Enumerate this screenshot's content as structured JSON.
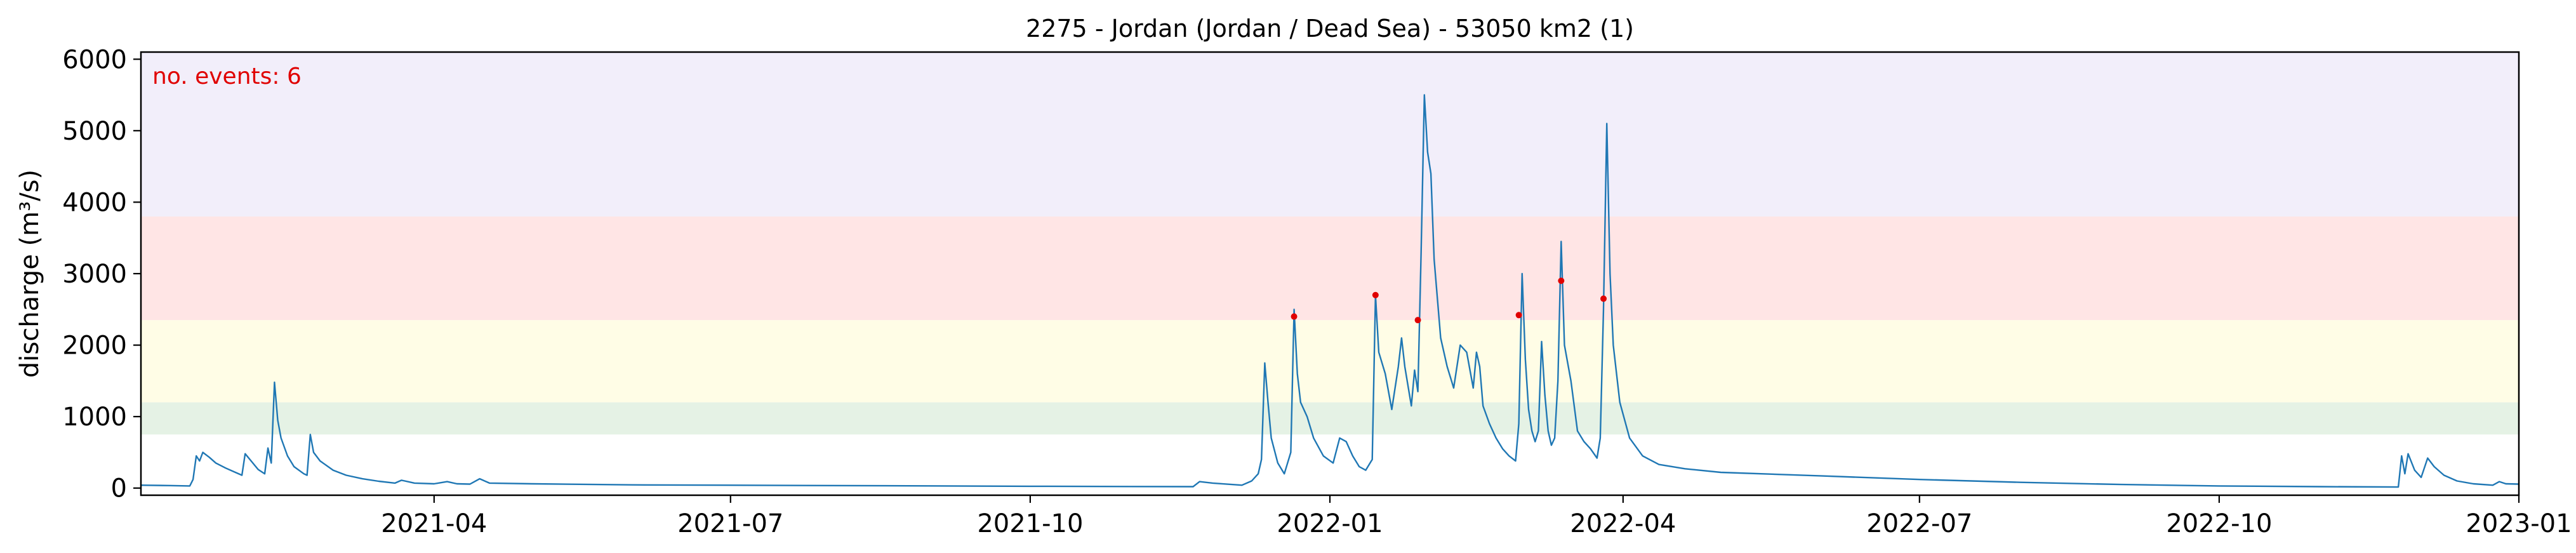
{
  "chart_data": {
    "type": "line",
    "title": "2275 - Jordan (Jordan / Dead Sea) - 53050 km2 (1)",
    "xlabel": "",
    "ylabel": "discharge (m³/s)",
    "annotation": "no. events: 6",
    "xlim": [
      "2021-01-01",
      "2023-01-01"
    ],
    "ylim": [
      -100,
      6100
    ],
    "x_tick_labels": [
      "2021-04",
      "2021-07",
      "2021-10",
      "2022-01",
      "2022-04",
      "2022-07",
      "2022-10",
      "2023-01"
    ],
    "x_ticks": [
      "2021-04-01",
      "2021-07-01",
      "2021-10-01",
      "2022-01-01",
      "2022-04-01",
      "2022-07-01",
      "2022-10-01",
      "2023-01-01"
    ],
    "y_ticks": [
      0,
      1000,
      2000,
      3000,
      4000,
      5000,
      6000
    ],
    "y_tick_labels": [
      "0",
      "1000",
      "2000",
      "3000",
      "4000",
      "5000",
      "6000"
    ],
    "grid": false,
    "threshold_bands": [
      {
        "from": 750,
        "to": 1200,
        "color": "#e5f2e5"
      },
      {
        "from": 1200,
        "to": 2350,
        "color": "#fffde6"
      },
      {
        "from": 2350,
        "to": 3800,
        "color": "#ffe5e5"
      },
      {
        "from": 3800,
        "to": 6100,
        "color": "#f2eefa"
      }
    ],
    "series": [
      {
        "color": "#1f77b4",
        "points": [
          [
            "2021-01-01",
            40
          ],
          [
            "2021-01-10",
            35
          ],
          [
            "2021-01-16",
            30
          ],
          [
            "2021-01-17",
            120
          ],
          [
            "2021-01-18",
            450
          ],
          [
            "2021-01-19",
            380
          ],
          [
            "2021-01-20",
            500
          ],
          [
            "2021-01-22",
            430
          ],
          [
            "2021-01-24",
            350
          ],
          [
            "2021-01-27",
            280
          ],
          [
            "2021-01-30",
            220
          ],
          [
            "2021-02-01",
            180
          ],
          [
            "2021-02-02",
            480
          ],
          [
            "2021-02-04",
            370
          ],
          [
            "2021-02-06",
            260
          ],
          [
            "2021-02-08",
            200
          ],
          [
            "2021-02-09",
            560
          ],
          [
            "2021-02-10",
            350
          ],
          [
            "2021-02-11",
            1480
          ],
          [
            "2021-02-12",
            950
          ],
          [
            "2021-02-13",
            700
          ],
          [
            "2021-02-15",
            450
          ],
          [
            "2021-02-17",
            300
          ],
          [
            "2021-02-20",
            200
          ],
          [
            "2021-02-21",
            180
          ],
          [
            "2021-02-22",
            750
          ],
          [
            "2021-02-23",
            500
          ],
          [
            "2021-02-25",
            380
          ],
          [
            "2021-03-01",
            250
          ],
          [
            "2021-03-05",
            180
          ],
          [
            "2021-03-10",
            130
          ],
          [
            "2021-03-15",
            95
          ],
          [
            "2021-03-20",
            70
          ],
          [
            "2021-03-22",
            110
          ],
          [
            "2021-03-26",
            70
          ],
          [
            "2021-04-01",
            60
          ],
          [
            "2021-04-05",
            90
          ],
          [
            "2021-04-08",
            60
          ],
          [
            "2021-04-12",
            55
          ],
          [
            "2021-04-15",
            130
          ],
          [
            "2021-04-18",
            70
          ],
          [
            "2021-05-01",
            60
          ],
          [
            "2021-06-01",
            45
          ],
          [
            "2021-08-01",
            35
          ],
          [
            "2021-10-01",
            25
          ],
          [
            "2021-11-20",
            20
          ],
          [
            "2021-11-22",
            90
          ],
          [
            "2021-11-26",
            70
          ],
          [
            "2021-12-05",
            40
          ],
          [
            "2021-12-08",
            100
          ],
          [
            "2021-12-10",
            200
          ],
          [
            "2021-12-11",
            400
          ],
          [
            "2021-12-12",
            1750
          ],
          [
            "2021-12-13",
            1200
          ],
          [
            "2021-12-14",
            700
          ],
          [
            "2021-12-16",
            350
          ],
          [
            "2021-12-18",
            200
          ],
          [
            "2021-12-19",
            350
          ],
          [
            "2021-12-20",
            500
          ],
          [
            "2021-12-21",
            2500
          ],
          [
            "2021-12-22",
            1600
          ],
          [
            "2021-12-23",
            1200
          ],
          [
            "2021-12-25",
            1000
          ],
          [
            "2021-12-27",
            700
          ],
          [
            "2021-12-30",
            450
          ],
          [
            "2022-01-02",
            350
          ],
          [
            "2022-01-04",
            700
          ],
          [
            "2022-01-06",
            650
          ],
          [
            "2022-01-08",
            450
          ],
          [
            "2022-01-10",
            300
          ],
          [
            "2022-01-12",
            250
          ],
          [
            "2022-01-14",
            400
          ],
          [
            "2022-01-15",
            2700
          ],
          [
            "2022-01-16",
            1900
          ],
          [
            "2022-01-18",
            1600
          ],
          [
            "2022-01-20",
            1100
          ],
          [
            "2022-01-22",
            1700
          ],
          [
            "2022-01-23",
            2100
          ],
          [
            "2022-01-24",
            1700
          ],
          [
            "2022-01-26",
            1150
          ],
          [
            "2022-01-27",
            1650
          ],
          [
            "2022-01-28",
            1350
          ],
          [
            "2022-01-29",
            3300
          ],
          [
            "2022-01-30",
            5500
          ],
          [
            "2022-01-31",
            4700
          ],
          [
            "2022-02-01",
            4400
          ],
          [
            "2022-02-02",
            3200
          ],
          [
            "2022-02-04",
            2100
          ],
          [
            "2022-02-06",
            1700
          ],
          [
            "2022-02-08",
            1400
          ],
          [
            "2022-02-10",
            2000
          ],
          [
            "2022-02-12",
            1900
          ],
          [
            "2022-02-14",
            1400
          ],
          [
            "2022-02-15",
            1900
          ],
          [
            "2022-02-16",
            1700
          ],
          [
            "2022-02-17",
            1150
          ],
          [
            "2022-02-19",
            900
          ],
          [
            "2022-02-21",
            700
          ],
          [
            "2022-02-23",
            550
          ],
          [
            "2022-02-25",
            450
          ],
          [
            "2022-02-27",
            380
          ],
          [
            "2022-02-28",
            900
          ],
          [
            "2022-03-01",
            3000
          ],
          [
            "2022-03-02",
            1800
          ],
          [
            "2022-03-03",
            1100
          ],
          [
            "2022-03-04",
            800
          ],
          [
            "2022-03-05",
            650
          ],
          [
            "2022-03-06",
            800
          ],
          [
            "2022-03-07",
            2050
          ],
          [
            "2022-03-08",
            1300
          ],
          [
            "2022-03-09",
            800
          ],
          [
            "2022-03-10",
            600
          ],
          [
            "2022-03-11",
            700
          ],
          [
            "2022-03-12",
            1500
          ],
          [
            "2022-03-13",
            3450
          ],
          [
            "2022-03-14",
            2000
          ],
          [
            "2022-03-16",
            1500
          ],
          [
            "2022-03-18",
            800
          ],
          [
            "2022-03-20",
            650
          ],
          [
            "2022-03-22",
            550
          ],
          [
            "2022-03-24",
            420
          ],
          [
            "2022-03-25",
            700
          ],
          [
            "2022-03-26",
            2500
          ],
          [
            "2022-03-27",
            5100
          ],
          [
            "2022-03-28",
            3000
          ],
          [
            "2022-03-29",
            2000
          ],
          [
            "2022-03-31",
            1200
          ],
          [
            "2022-04-03",
            700
          ],
          [
            "2022-04-07",
            450
          ],
          [
            "2022-04-12",
            330
          ],
          [
            "2022-04-20",
            270
          ],
          [
            "2022-05-01",
            220
          ],
          [
            "2022-06-01",
            170
          ],
          [
            "2022-07-01",
            120
          ],
          [
            "2022-08-01",
            80
          ],
          [
            "2022-09-01",
            50
          ],
          [
            "2022-10-01",
            30
          ],
          [
            "2022-11-01",
            20
          ],
          [
            "2022-11-25",
            15
          ],
          [
            "2022-11-26",
            450
          ],
          [
            "2022-11-27",
            200
          ],
          [
            "2022-11-28",
            480
          ],
          [
            "2022-11-30",
            250
          ],
          [
            "2022-12-02",
            150
          ],
          [
            "2022-12-04",
            420
          ],
          [
            "2022-12-06",
            300
          ],
          [
            "2022-12-09",
            180
          ],
          [
            "2022-12-13",
            100
          ],
          [
            "2022-12-18",
            60
          ],
          [
            "2022-12-24",
            40
          ],
          [
            "2022-12-26",
            90
          ],
          [
            "2022-12-28",
            60
          ],
          [
            "2023-01-01",
            55
          ]
        ]
      }
    ],
    "event_markers": {
      "color": "#e00000",
      "points": [
        [
          "2021-12-21",
          2400
        ],
        [
          "2022-01-15",
          2700
        ],
        [
          "2022-01-28",
          2350
        ],
        [
          "2022-02-28",
          2420
        ],
        [
          "2022-03-13",
          2900
        ],
        [
          "2022-03-26",
          2650
        ]
      ]
    }
  }
}
